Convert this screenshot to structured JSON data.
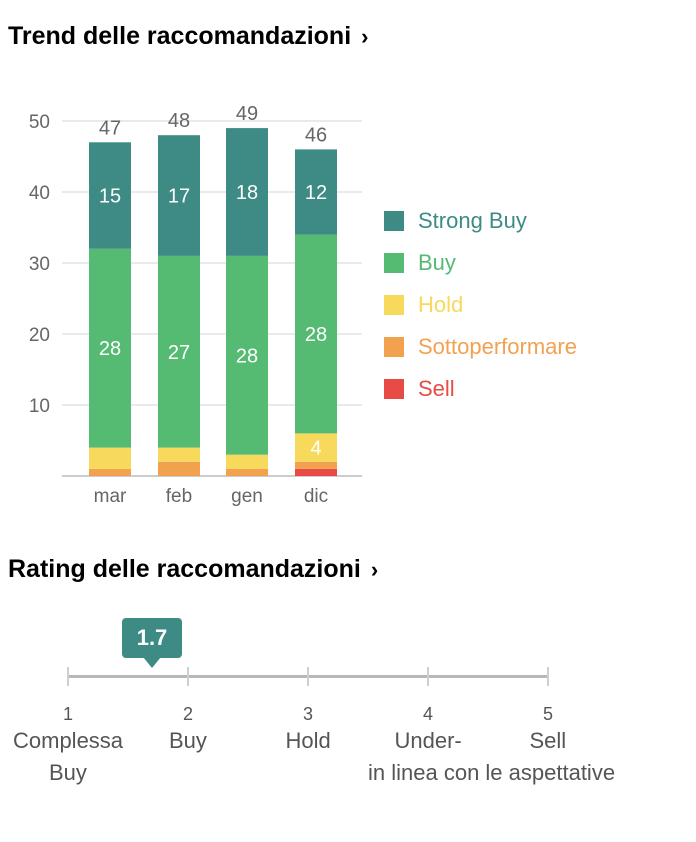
{
  "trend": {
    "title": "Trend delle raccomandazioni",
    "chevron": "›"
  },
  "rating": {
    "title": "Rating delle raccomandazioni",
    "chevron": "›",
    "value": "1.7",
    "value_num": 1.7,
    "scale_min": 1,
    "scale_max": 5,
    "ticks": [
      {
        "num": "1",
        "label1": "Complessa",
        "label2": "Buy"
      },
      {
        "num": "2",
        "label1": "Buy",
        "label2": ""
      },
      {
        "num": "3",
        "label1": "Hold",
        "label2": ""
      },
      {
        "num": "4",
        "label1": "Under-",
        "label2": ""
      },
      {
        "num": "5",
        "label1": "Sell",
        "label2": ""
      }
    ],
    "extra_label": "in linea con le aspettative",
    "accent": "#3d8b84"
  },
  "chart_data": {
    "type": "bar",
    "stacked": true,
    "categories": [
      "mar",
      "feb",
      "gen",
      "dic"
    ],
    "totals": [
      47,
      48,
      49,
      46
    ],
    "ylim": [
      0,
      52
    ],
    "yticks": [
      10,
      20,
      30,
      40,
      50
    ],
    "grid": true,
    "legend_position": "right",
    "series": [
      {
        "name": "Sell",
        "color": "#e84b45",
        "values": [
          0,
          0,
          0,
          1
        ],
        "labels": [
          "",
          "",
          "",
          ""
        ]
      },
      {
        "name": "Sottoperformare",
        "color": "#f2a24f",
        "values": [
          1,
          2,
          1,
          1
        ],
        "labels": [
          "",
          "",
          "",
          ""
        ]
      },
      {
        "name": "Hold",
        "color": "#f7d95c",
        "values": [
          3,
          2,
          2,
          4
        ],
        "labels": [
          "",
          "",
          "",
          "4"
        ]
      },
      {
        "name": "Buy",
        "color": "#56bb72",
        "values": [
          28,
          27,
          28,
          28
        ],
        "labels": [
          "28",
          "27",
          "28",
          "28"
        ]
      },
      {
        "name": "Strong Buy",
        "color": "#3d8b84",
        "values": [
          15,
          17,
          18,
          12
        ],
        "labels": [
          "15",
          "17",
          "18",
          "12"
        ]
      }
    ],
    "legend_order": [
      "Strong Buy",
      "Buy",
      "Hold",
      "Sottoperformare",
      "Sell"
    ]
  }
}
